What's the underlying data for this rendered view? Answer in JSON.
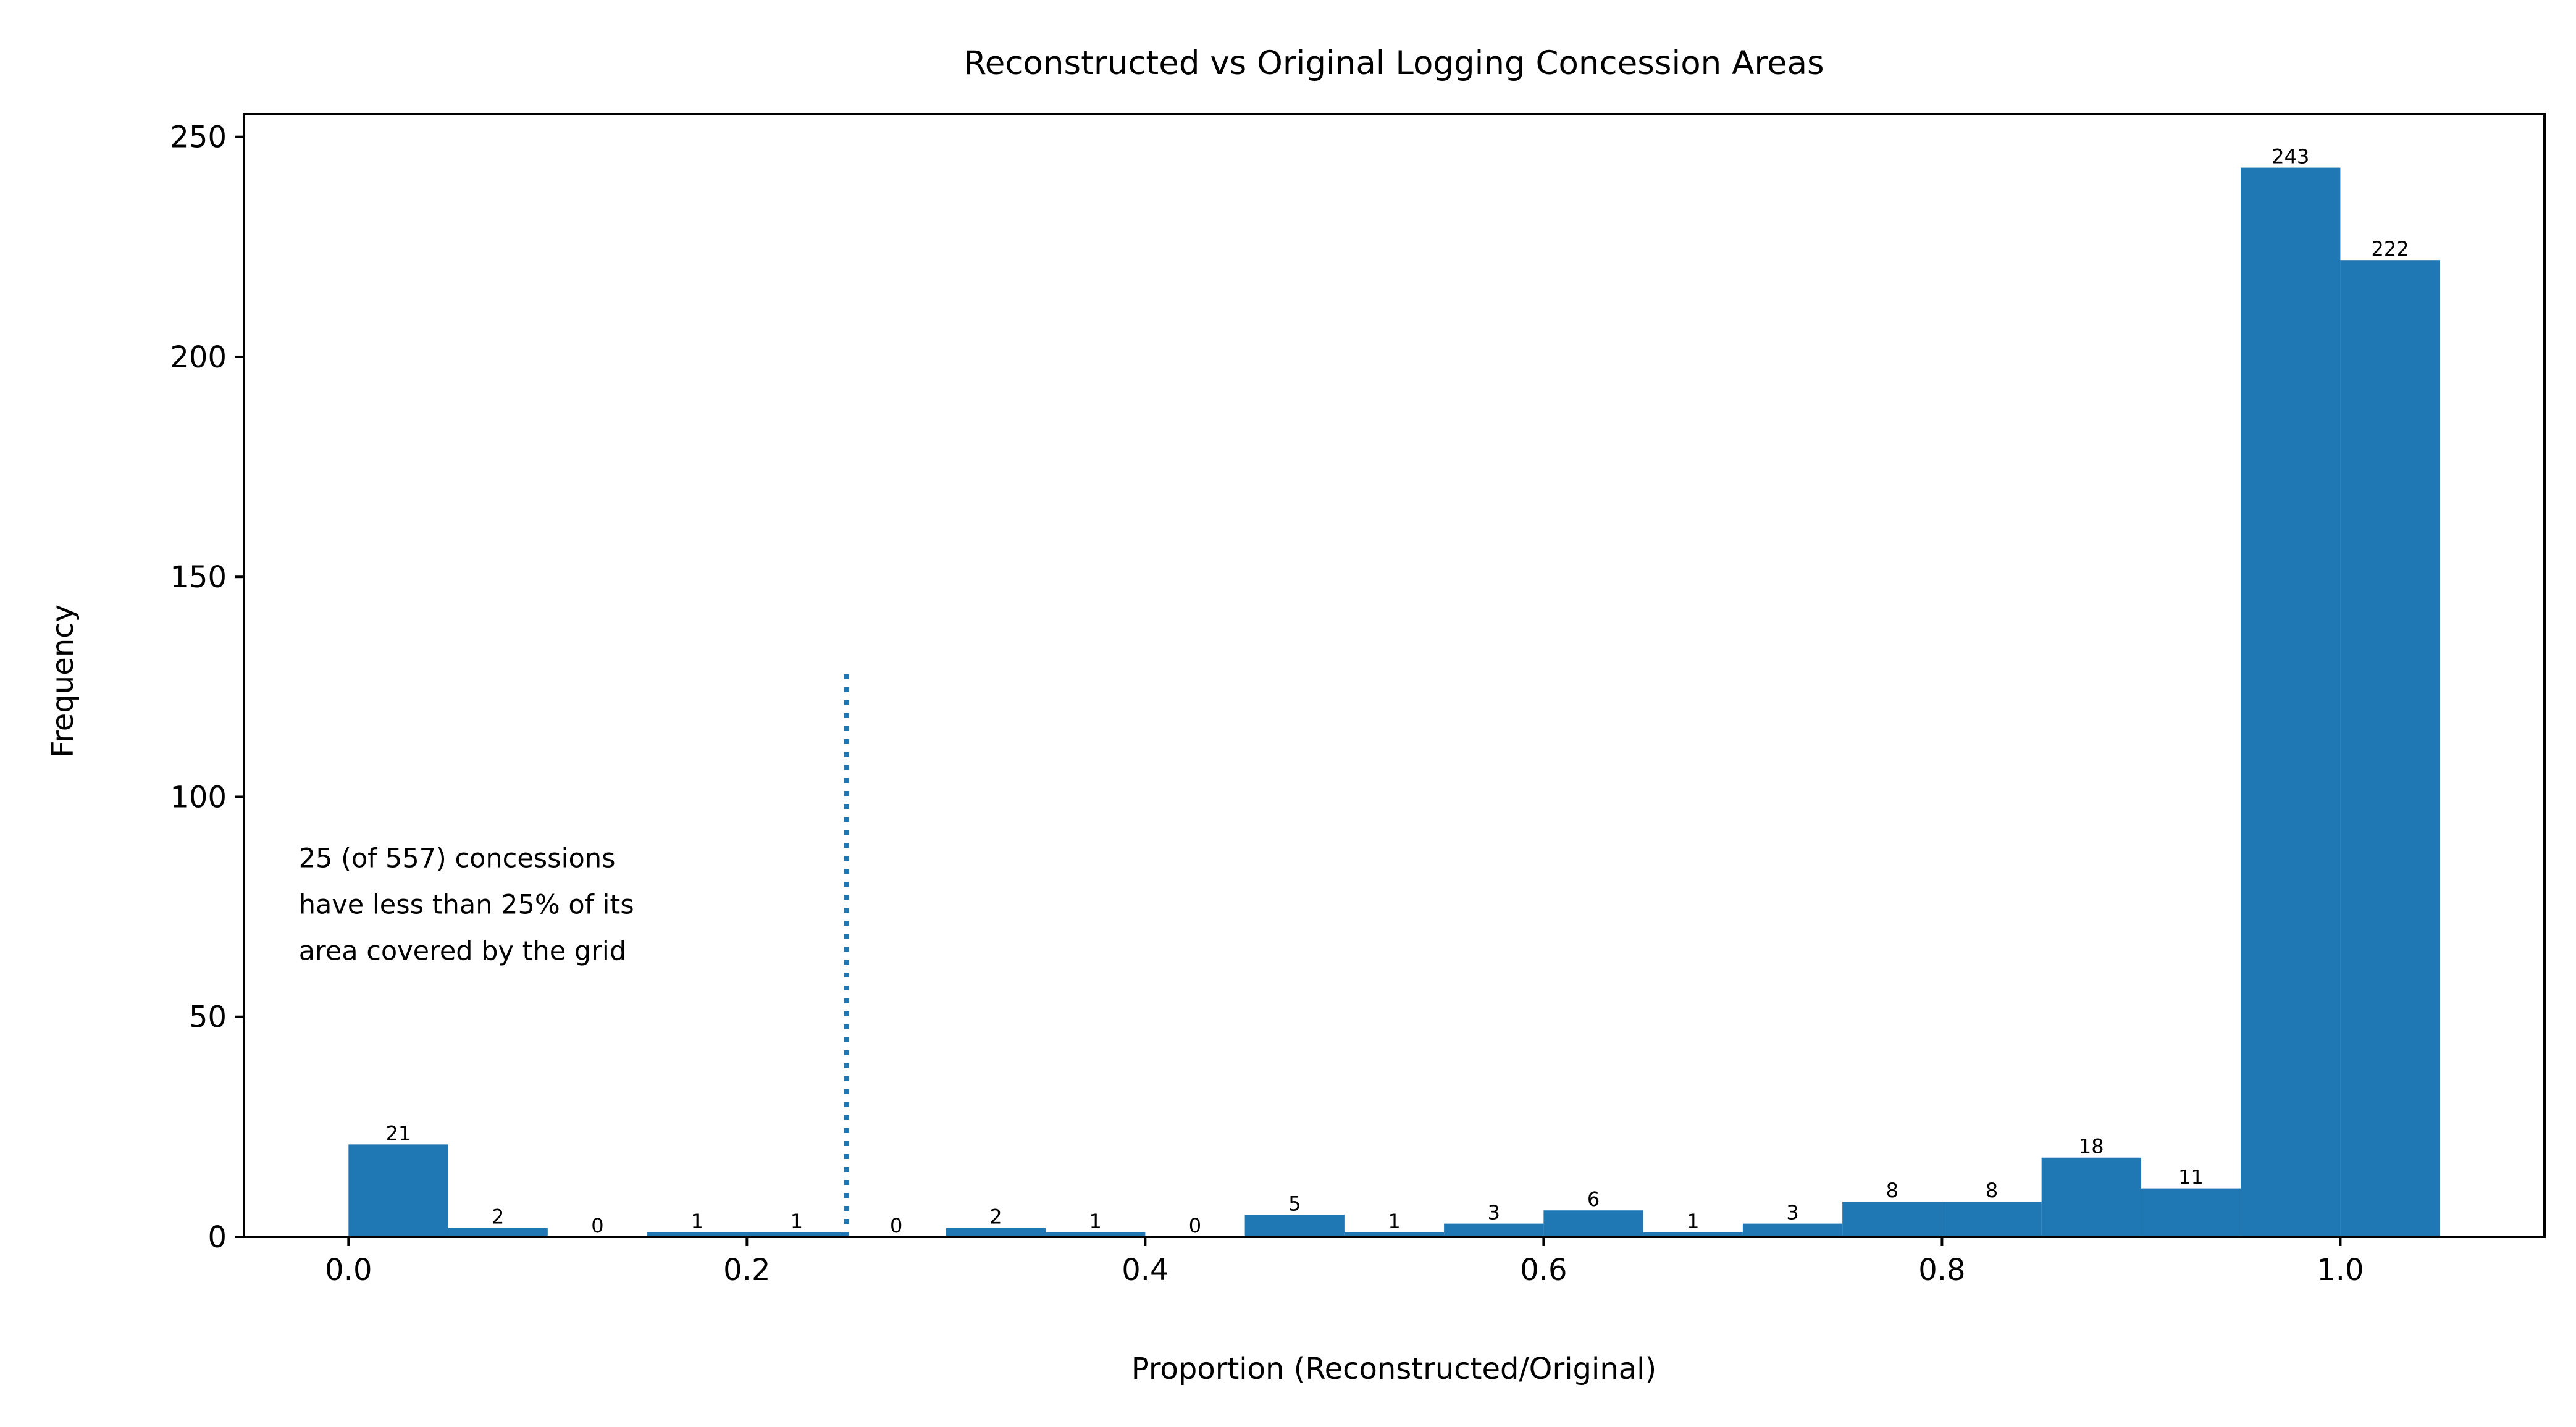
{
  "chart_data": {
    "type": "bar",
    "title": "Reconstructed vs Original Logging Concession Areas",
    "xlabel": "Proportion (Reconstructed/Original)",
    "ylabel": "Frequency",
    "xlim": [
      -0.0525,
      1.1025
    ],
    "ylim": [
      0,
      255.15
    ],
    "xticks": [
      0.0,
      0.2,
      0.4,
      0.6,
      0.8,
      1.0
    ],
    "xtick_labels": [
      "0.0",
      "0.2",
      "0.4",
      "0.6",
      "0.8",
      "1.0"
    ],
    "yticks": [
      0,
      50,
      100,
      150,
      200,
      250
    ],
    "ytick_labels": [
      "0",
      "50",
      "100",
      "150",
      "200",
      "250"
    ],
    "bin_width": 0.05,
    "bins": [
      {
        "x0": 0.0,
        "value": 21,
        "label": "21"
      },
      {
        "x0": 0.05,
        "value": 2,
        "label": "2"
      },
      {
        "x0": 0.1,
        "value": 0,
        "label": "0"
      },
      {
        "x0": 0.15,
        "value": 1,
        "label": "1"
      },
      {
        "x0": 0.2,
        "value": 1,
        "label": "1"
      },
      {
        "x0": 0.25,
        "value": 0,
        "label": "0"
      },
      {
        "x0": 0.3,
        "value": 2,
        "label": "2"
      },
      {
        "x0": 0.35,
        "value": 1,
        "label": "1"
      },
      {
        "x0": 0.4,
        "value": 0,
        "label": "0"
      },
      {
        "x0": 0.45,
        "value": 5,
        "label": "5"
      },
      {
        "x0": 0.5,
        "value": 1,
        "label": "1"
      },
      {
        "x0": 0.55,
        "value": 3,
        "label": "3"
      },
      {
        "x0": 0.6,
        "value": 6,
        "label": "6"
      },
      {
        "x0": 0.65,
        "value": 1,
        "label": "1"
      },
      {
        "x0": 0.7,
        "value": 3,
        "label": "3"
      },
      {
        "x0": 0.75,
        "value": 8,
        "label": "8"
      },
      {
        "x0": 0.8,
        "value": 8,
        "label": "8"
      },
      {
        "x0": 0.85,
        "value": 18,
        "label": "18"
      },
      {
        "x0": 0.9,
        "value": 11,
        "label": "11"
      },
      {
        "x0": 0.95,
        "value": 243,
        "label": "243"
      },
      {
        "x0": 1.0,
        "value": 222,
        "label": "222"
      }
    ],
    "threshold_line": {
      "x": 0.25,
      "y_top": 128,
      "style": "dotted"
    },
    "annotation": {
      "lines": [
        "25 (of 557) concessions",
        "have less than 25% of its",
        "area covered by the grid"
      ],
      "anchor_x": -0.025,
      "anchor_y": 84
    },
    "colors": {
      "bar": "#1f77b4",
      "threshold": "#1f77b4",
      "axes": "#000000"
    },
    "grid": false,
    "legend": "none"
  }
}
